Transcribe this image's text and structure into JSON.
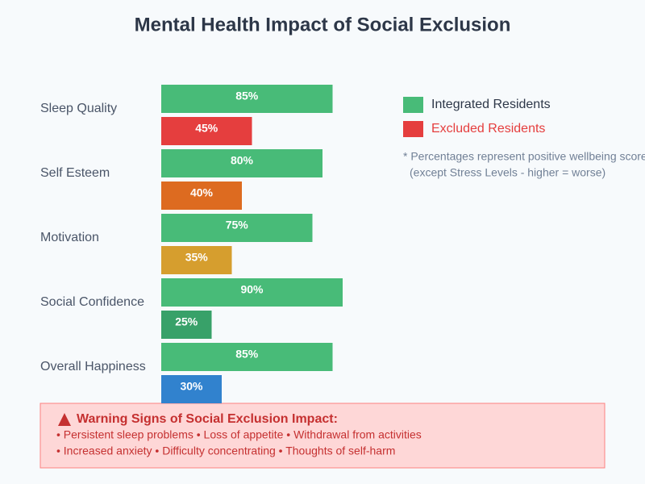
{
  "chart_data": {
    "type": "hbar",
    "title": "Mental Health Impact of Social Exclusion",
    "categories": [
      "Sleep Quality",
      "Self Esteem",
      "Motivation",
      "Social Confidence",
      "Overall Happiness"
    ],
    "series": [
      {
        "name": "Integrated Residents",
        "color": "#48bb78",
        "values": [
          85,
          80,
          75,
          90,
          85
        ],
        "value_labels": [
          "85%",
          "80%",
          "75%",
          "90%",
          "85%"
        ]
      },
      {
        "name": "Excluded Residents",
        "color": "#e53e3e",
        "colors": [
          "#e53e3e",
          "#dd6b20",
          "#d69e2e",
          "#38a169",
          "#3182ce"
        ],
        "values": [
          45,
          40,
          35,
          25,
          30
        ],
        "value_labels": [
          "45%",
          "40%",
          "35%",
          "25%",
          "30%"
        ]
      }
    ],
    "notes": [
      "* Percentages represent positive wellbeing scores",
      "(except Stress Levels - higher = worse)"
    ],
    "warning": {
      "title": "Warning Signs of Social Exclusion Impact:",
      "lines": [
        "• Persistent sleep problems • Loss of appetite • Withdrawal from activities",
        "• Increased anxiety • Difficulty concentrating • Thoughts of self-harm"
      ]
    }
  }
}
